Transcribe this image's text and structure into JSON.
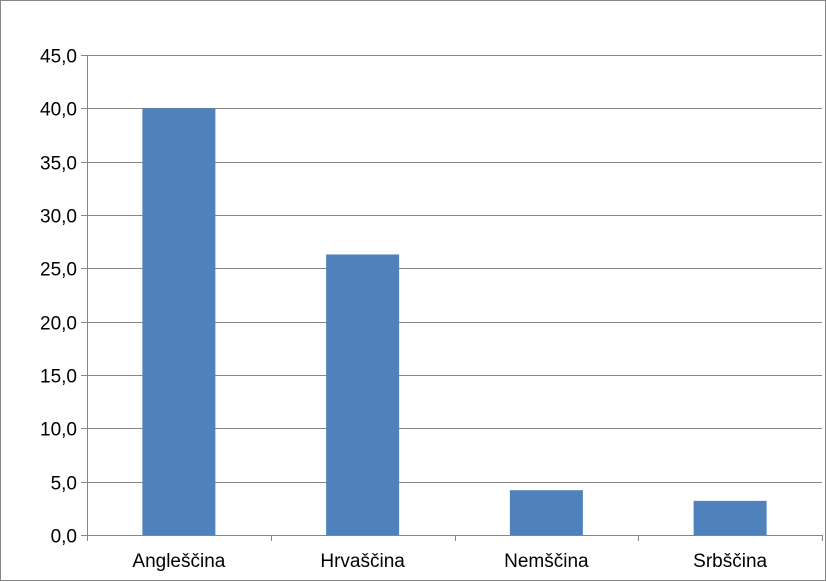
{
  "chart_data": {
    "type": "bar",
    "categories": [
      "Angleščina",
      "Hrvaščina",
      "Nemščina",
      "Srbščina"
    ],
    "values": [
      40.0,
      26.3,
      4.2,
      3.2
    ],
    "ylim": [
      0,
      45
    ],
    "yticks": [
      "0,0",
      "5,0",
      "10,0",
      "15,0",
      "20,0",
      "25,0",
      "30,0",
      "35,0",
      "40,0",
      "45,0"
    ],
    "title": "",
    "xlabel": "",
    "ylabel": "",
    "grid": true,
    "legend": "none",
    "bar_color": "#4F81BD",
    "gridline_color": "#868686"
  }
}
